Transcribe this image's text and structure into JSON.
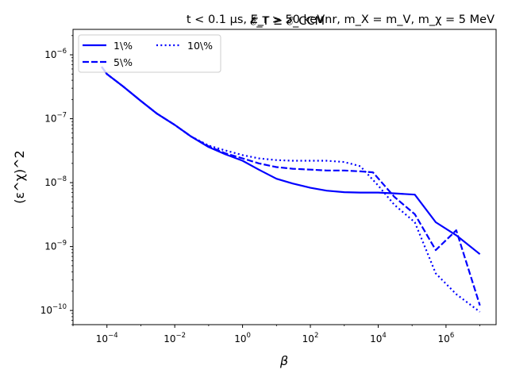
{
  "chart_data": {
    "type": "line",
    "title": "t < 0.1 μs, E_r > 50 keVnr, m_X = m_V, m_χ = 5 MeV",
    "title_overlap": "𝓔_T ≥ 𝓔_CCM",
    "xlabel": "β",
    "ylabel": "(ε^χ)^2",
    "xscale": "log",
    "yscale": "log",
    "xlim": [
      1e-05,
      30000000.0
    ],
    "ylim": [
      6e-11,
      2.5e-06
    ],
    "x_ticks": [
      {
        "base": "10",
        "exp": "−4",
        "value": 0.0001
      },
      {
        "base": "10",
        "exp": "−2",
        "value": 0.01
      },
      {
        "base": "10",
        "exp": "0",
        "value": 1
      },
      {
        "base": "10",
        "exp": "2",
        "value": 100
      },
      {
        "base": "10",
        "exp": "4",
        "value": 10000.0
      },
      {
        "base": "10",
        "exp": "6",
        "value": 1000000.0
      }
    ],
    "y_ticks": [
      {
        "base": "10",
        "exp": "−10",
        "value": 1e-10
      },
      {
        "base": "10",
        "exp": "−9",
        "value": 1e-09
      },
      {
        "base": "10",
        "exp": "−8",
        "value": 1e-08
      },
      {
        "base": "10",
        "exp": "−7",
        "value": 1e-07
      },
      {
        "base": "10",
        "exp": "−6",
        "value": 1e-06
      }
    ],
    "legend_location": "upper-left",
    "grid": false,
    "color": "#0000ff",
    "series": [
      {
        "name": "1\\%",
        "dash": "solid",
        "x": [
          7e-05,
          0.0001,
          0.0003,
          0.001,
          0.003,
          0.01,
          0.03,
          0.1,
          0.3,
          1,
          3,
          10,
          30,
          100,
          300,
          1000,
          3000,
          10000.0,
          30000.0,
          120000.0,
          500000.0,
          2000000.0,
          10000000.0
        ],
        "y": [
          6.5e-07,
          5e-07,
          3.2e-07,
          1.9e-07,
          1.2e-07,
          8e-08,
          5.3e-08,
          3.6e-08,
          2.8e-08,
          2.2e-08,
          1.6e-08,
          1.15e-08,
          9.7e-09,
          8.3e-09,
          7.5e-09,
          7.1e-09,
          7e-09,
          7e-09,
          6.8e-09,
          6.5e-09,
          2.4e-09,
          1.5e-09,
          7.6e-10
        ]
      },
      {
        "name": "5\\%",
        "dash": "dashed",
        "x": [
          7e-05,
          0.0001,
          0.0003,
          0.001,
          0.003,
          0.01,
          0.03,
          0.1,
          0.3,
          1,
          3,
          10,
          30,
          100,
          300,
          1000,
          3000,
          7000.0,
          30000.0,
          120000.0,
          500000.0,
          2000000.0,
          10000000.0
        ],
        "y": [
          6.5e-07,
          5e-07,
          3.2e-07,
          1.9e-07,
          1.2e-07,
          8e-08,
          5.3e-08,
          3.7e-08,
          2.9e-08,
          2.4e-08,
          2e-08,
          1.75e-08,
          1.65e-08,
          1.6e-08,
          1.55e-08,
          1.55e-08,
          1.5e-08,
          1.45e-08,
          6e-09,
          3.2e-09,
          8.8e-10,
          1.8e-09,
          1.2e-10
        ]
      },
      {
        "name": "10\\%",
        "dash": "dotted",
        "x": [
          7e-05,
          0.0001,
          0.0003,
          0.001,
          0.003,
          0.01,
          0.03,
          0.1,
          0.3,
          1,
          3,
          10,
          30,
          100,
          300,
          1000,
          3000,
          10000.0,
          30000.0,
          120000.0,
          500000.0,
          2000000.0,
          10000000.0
        ],
        "y": [
          6.5e-07,
          5e-07,
          3.2e-07,
          1.9e-07,
          1.2e-07,
          8e-08,
          5.3e-08,
          3.8e-08,
          3.2e-08,
          2.7e-08,
          2.4e-08,
          2.25e-08,
          2.2e-08,
          2.2e-08,
          2.2e-08,
          2.1e-08,
          1.8e-08,
          9e-09,
          4.5e-09,
          2.4e-09,
          3.8e-10,
          1.8e-10,
          9.5e-11
        ]
      }
    ]
  }
}
